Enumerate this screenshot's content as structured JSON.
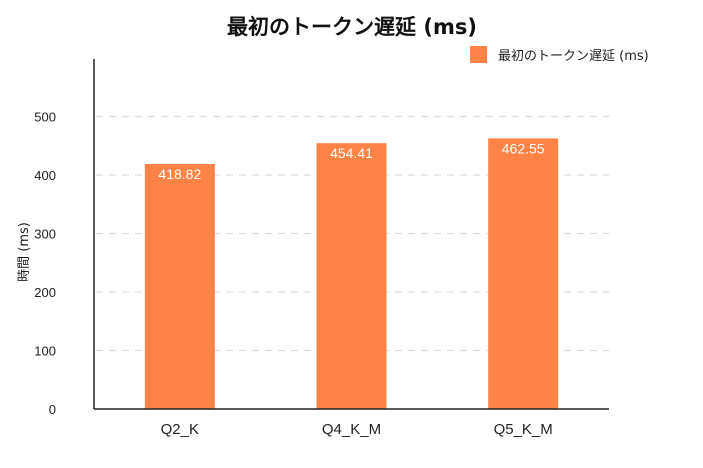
{
  "chart_data": {
    "type": "bar",
    "title": "最初のトークン遅延 (ms)",
    "xlabel": "",
    "ylabel": "時間 (ms)",
    "categories": [
      "Q2_K",
      "Q4_K_M",
      "Q5_K_M"
    ],
    "series": [
      {
        "name": "最初のトークン遅延 (ms)",
        "values": [
          418.82,
          454.41,
          462.55
        ],
        "color": "#FF8345"
      }
    ],
    "data_labels": [
      "418.82",
      "454.41",
      "462.55"
    ],
    "ylim": [
      0,
      600
    ],
    "yticks": [
      0,
      100,
      200,
      300,
      400,
      500
    ],
    "grid": true,
    "legend_position": "top-right"
  }
}
